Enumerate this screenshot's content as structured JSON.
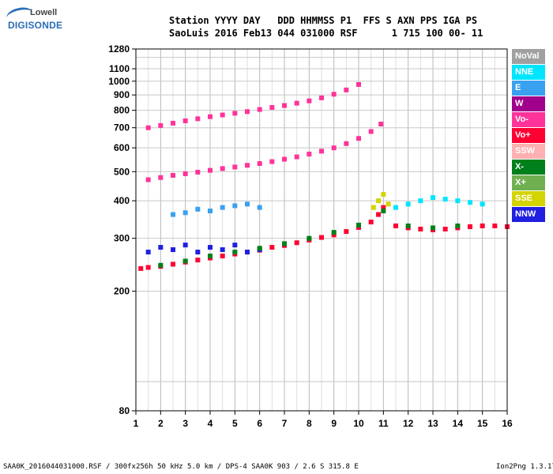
{
  "logo": {
    "line1": "Lowell",
    "line2": "DIGISONDE"
  },
  "header": {
    "line1": "Station YYYY DAY   DDD HHMMSS P1  FFS S AXN PPS IGA PS",
    "line2": "SaoLuis 2016 Feb13 044 031000 RSF      1 715 100 00- 11"
  },
  "legend": [
    {
      "label": "NoVal",
      "color": "#a0a0a0"
    },
    {
      "label": "NNE",
      "color": "#00e5ff"
    },
    {
      "label": "E",
      "color": "#3aa0f0"
    },
    {
      "label": "W",
      "color": "#a0008c"
    },
    {
      "label": "Vo-",
      "color": "#ff3399"
    },
    {
      "label": "Vo+",
      "color": "#ff0033"
    },
    {
      "label": "SSW",
      "color": "#ffb0b0"
    },
    {
      "label": "X-",
      "color": "#00801a"
    },
    {
      "label": "X+",
      "color": "#70b050"
    },
    {
      "label": "SSE",
      "color": "#d4d400"
    },
    {
      "label": "NNW",
      "color": "#2020e0"
    }
  ],
  "footer": {
    "left": "SAA0K_2016044031000.RSF / 300fx256h 50 kHz 5.0 km / DPS-4 SAA0K 903 / 2.6 S 315.8 E",
    "right": "Ion2Png 1.3.17"
  },
  "chart_data": {
    "type": "scatter",
    "title": "",
    "xlabel": "",
    "ylabel": "",
    "xlim": [
      1,
      16
    ],
    "ylim": [
      80,
      1280
    ],
    "y_scale": "log",
    "x_ticks": [
      1,
      2,
      3,
      4,
      5,
      6,
      7,
      8,
      9,
      10,
      11,
      12,
      13,
      14,
      15,
      16
    ],
    "y_ticks": [
      80,
      200,
      300,
      400,
      500,
      600,
      700,
      800,
      900,
      1000,
      1100,
      1280
    ],
    "grid": true,
    "series": [
      {
        "name": "Vo+",
        "color": "#ff0033",
        "x": [
          1.2,
          1.5,
          2,
          2.5,
          3,
          3.5,
          4,
          4.5,
          5,
          5.5,
          6,
          6.5,
          7,
          7.5,
          8,
          8.5,
          9,
          9.5,
          10,
          10.5,
          10.8,
          11,
          11.5,
          12,
          12.5,
          13,
          13.5,
          14,
          14.5,
          15,
          15.5,
          16
        ],
        "y": [
          238,
          240,
          242,
          246,
          250,
          254,
          258,
          262,
          266,
          270,
          274,
          280,
          284,
          290,
          296,
          302,
          308,
          316,
          326,
          340,
          360,
          380,
          330,
          325,
          322,
          320,
          322,
          325,
          328,
          330,
          330,
          328
        ]
      },
      {
        "name": "Vo-",
        "color": "#ff3399",
        "x": [
          1.5,
          2,
          2.5,
          3,
          3.5,
          4,
          4.5,
          5,
          5.5,
          6,
          6.5,
          7,
          7.5,
          8,
          8.5,
          9,
          9.5,
          10,
          10.5,
          10.9
        ],
        "y": [
          470,
          478,
          486,
          492,
          498,
          505,
          512,
          518,
          525,
          532,
          540,
          550,
          560,
          572,
          585,
          600,
          620,
          645,
          680,
          720
        ]
      },
      {
        "name": "Vo-",
        "color": "#ff3399",
        "x": [
          1.5,
          2,
          2.5,
          3,
          3.5,
          4,
          4.5,
          5,
          5.5,
          6,
          6.5,
          7,
          7.5,
          8,
          8.5,
          9,
          9.5,
          10
        ],
        "y": [
          700,
          712,
          725,
          738,
          750,
          762,
          772,
          782,
          792,
          805,
          818,
          830,
          845,
          860,
          880,
          905,
          935,
          975
        ]
      },
      {
        "name": "NNE",
        "color": "#00e5ff",
        "x": [
          11.5,
          12,
          12.5,
          13,
          13.5,
          14,
          14.5,
          15
        ],
        "y": [
          380,
          390,
          400,
          410,
          405,
          400,
          395,
          390
        ]
      },
      {
        "name": "NNW",
        "color": "#2020e0",
        "x": [
          1.5,
          2,
          2.5,
          3,
          3.5,
          4,
          4.5,
          5,
          5.5,
          6
        ],
        "y": [
          270,
          280,
          275,
          285,
          270,
          280,
          275,
          285,
          270,
          275
        ]
      },
      {
        "name": "E",
        "color": "#3aa0f0",
        "x": [
          2.5,
          3,
          3.5,
          4,
          4.5,
          5,
          5.5,
          6
        ],
        "y": [
          360,
          365,
          375,
          370,
          380,
          385,
          390,
          380
        ]
      },
      {
        "name": "SSE",
        "color": "#d4d400",
        "x": [
          10.6,
          10.8,
          11,
          11.2
        ],
        "y": [
          380,
          400,
          420,
          390
        ]
      },
      {
        "name": "X-",
        "color": "#00801a",
        "x": [
          2,
          3,
          4,
          5,
          6,
          7,
          8,
          9,
          10,
          11,
          12,
          13,
          14
        ],
        "y": [
          244,
          252,
          262,
          270,
          278,
          288,
          300,
          314,
          332,
          370,
          330,
          325,
          330
        ]
      }
    ]
  }
}
